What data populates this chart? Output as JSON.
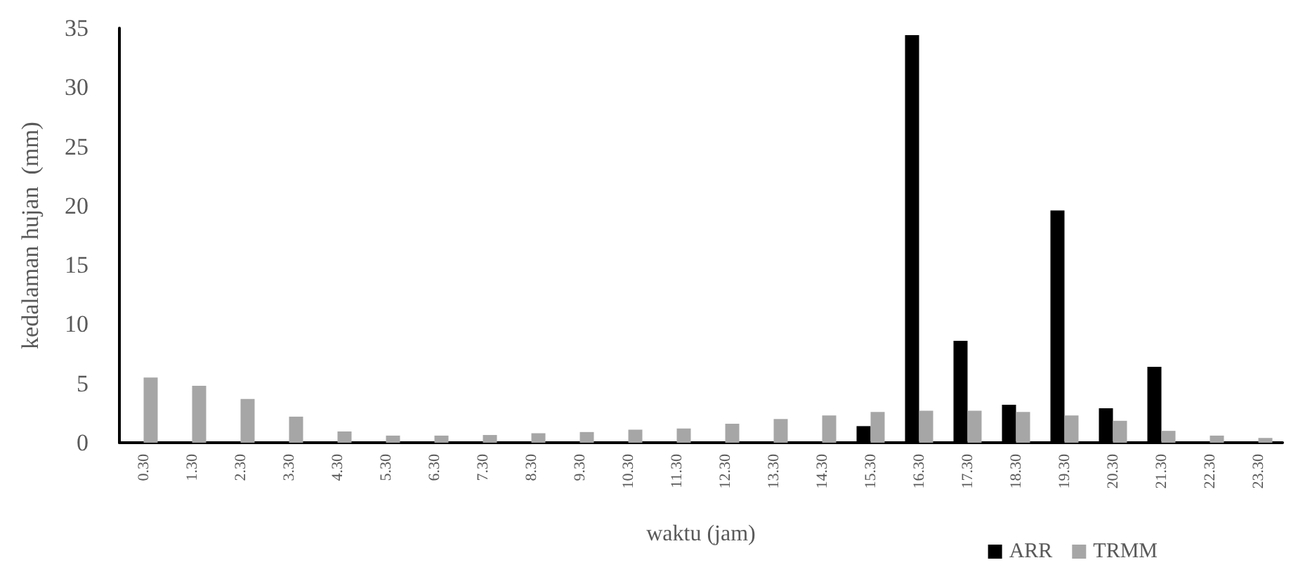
{
  "chart_data": {
    "type": "bar",
    "xlabel": "waktu (jam)",
    "ylabel": "kedalaman hujan  (mm)",
    "categories": [
      "0.30",
      "1.30",
      "2.30",
      "3.30",
      "4.30",
      "5.30",
      "6.30",
      "7.30",
      "8.30",
      "9.30",
      "10.30",
      "11.30",
      "12.30",
      "13.30",
      "14.30",
      "15.30",
      "16.30",
      "17.30",
      "18.30",
      "19.30",
      "20.30",
      "21.30",
      "22.30",
      "23.30"
    ],
    "series": [
      {
        "name": "ARR",
        "color": "#000000",
        "values": [
          0,
          0,
          0,
          0,
          0,
          0,
          0,
          0,
          0,
          0,
          0,
          0,
          0,
          0,
          0,
          1.4,
          34.4,
          8.6,
          3.2,
          19.6,
          2.9,
          6.4,
          0,
          0
        ]
      },
      {
        "name": "TRMM",
        "color": "#a6a6a6",
        "values": [
          5.5,
          4.8,
          3.7,
          2.2,
          0.95,
          0.6,
          0.6,
          0.65,
          0.8,
          0.9,
          1.1,
          1.2,
          1.6,
          2.0,
          2.3,
          2.6,
          2.7,
          2.7,
          2.6,
          2.3,
          1.85,
          1.0,
          0.6,
          0.4
        ]
      }
    ],
    "ylim": [
      0,
      35
    ],
    "yticks": [
      0,
      5,
      10,
      15,
      20,
      25,
      30,
      35
    ],
    "grid": false,
    "legend": "bottom right"
  }
}
